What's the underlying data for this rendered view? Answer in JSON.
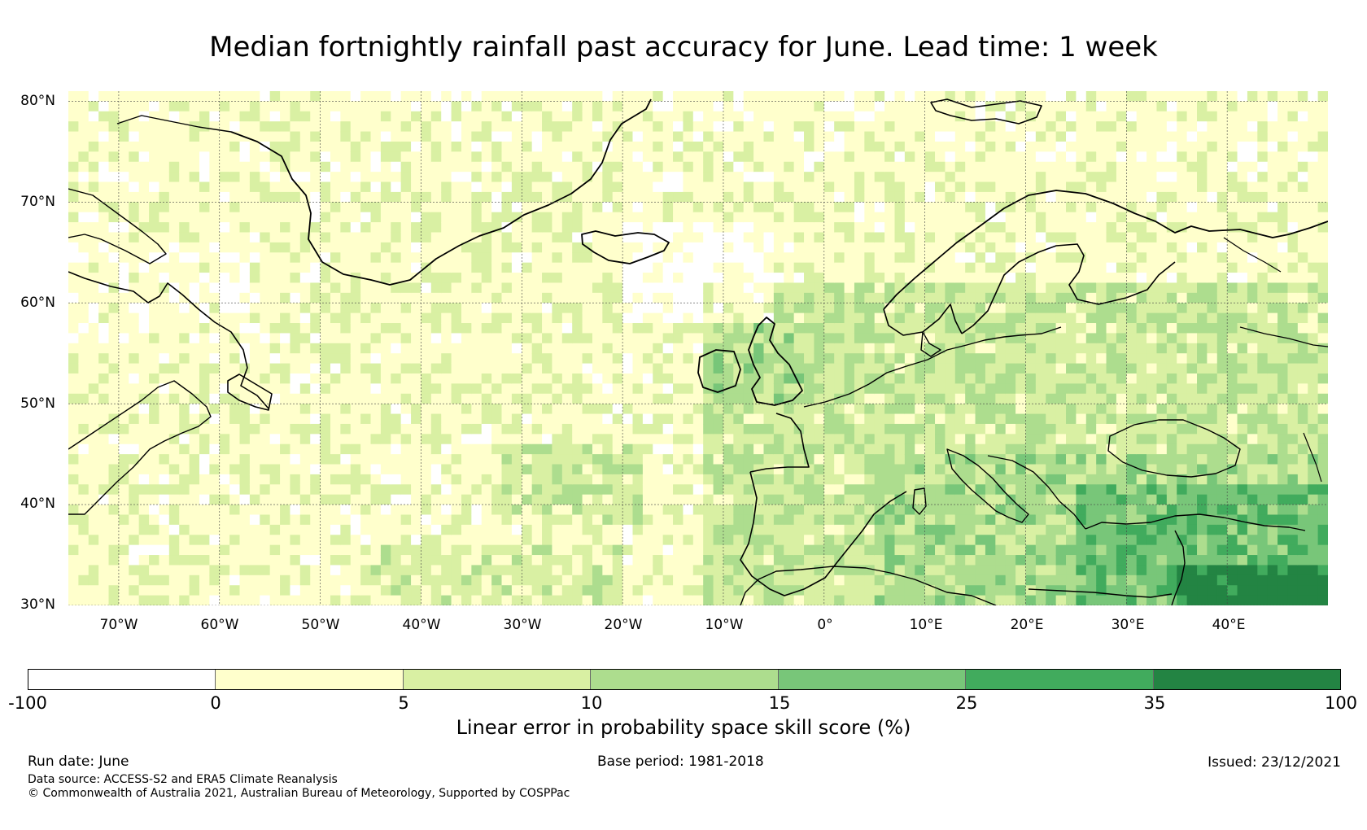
{
  "title": "Median fortnightly rainfall past accuracy for June. Lead time: 1 week",
  "map": {
    "lat_labels": [
      "80°N",
      "70°N",
      "60°N",
      "50°N",
      "40°N",
      "30°N"
    ],
    "lon_labels": [
      "70°W",
      "60°W",
      "50°W",
      "40°W",
      "30°W",
      "20°W",
      "10°W",
      "0°",
      "10°E",
      "20°E",
      "30°E",
      "40°E"
    ],
    "lat_range": [
      30,
      81
    ],
    "lon_range": [
      -75,
      50
    ],
    "gridlines": true
  },
  "colorbar": {
    "tick_labels": [
      "-100",
      "0",
      "5",
      "10",
      "15",
      "25",
      "35",
      "100"
    ],
    "colors": [
      "#ffffff",
      "#ffffcc",
      "#d9f0a3",
      "#addd8e",
      "#78c679",
      "#41ab5d",
      "#238443"
    ],
    "label": "Linear error in probability space skill score (%)"
  },
  "footer": {
    "run_date": "Run date: June",
    "base_period": "Base period: 1981-2018",
    "issued": "Issued: 23/12/2021",
    "data_source": "Data source: ACCESS-S2 and ERA5 Climate Reanalysis",
    "copyright": "© Commonwealth of Australia 2021, Australian Bureau of Meteorology, Supported by COSPPac"
  }
}
